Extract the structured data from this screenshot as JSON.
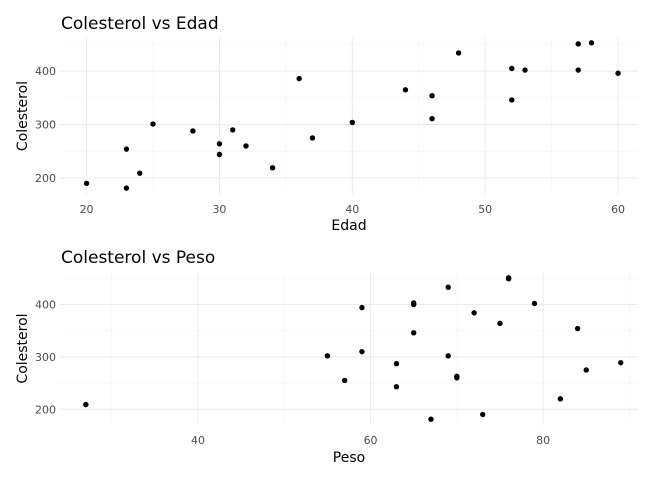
{
  "chart_data": [
    {
      "type": "scatter",
      "title": "Colesterol vs Edad",
      "xlabel": "Edad",
      "ylabel": "Colesterol",
      "xlim": [
        18,
        61.5
      ],
      "ylim": [
        170,
        462
      ],
      "x_ticks": [
        20,
        30,
        40,
        50,
        60
      ],
      "y_ticks": [
        200,
        300,
        400
      ],
      "grid": true,
      "points": [
        {
          "x": 20,
          "y": 190
        },
        {
          "x": 23,
          "y": 181
        },
        {
          "x": 23,
          "y": 254
        },
        {
          "x": 24,
          "y": 209
        },
        {
          "x": 25,
          "y": 301
        },
        {
          "x": 28,
          "y": 288
        },
        {
          "x": 30,
          "y": 264
        },
        {
          "x": 30,
          "y": 244
        },
        {
          "x": 31,
          "y": 290
        },
        {
          "x": 32,
          "y": 260
        },
        {
          "x": 34,
          "y": 219
        },
        {
          "x": 36,
          "y": 386
        },
        {
          "x": 37,
          "y": 275
        },
        {
          "x": 40,
          "y": 304
        },
        {
          "x": 44,
          "y": 365
        },
        {
          "x": 46,
          "y": 354
        },
        {
          "x": 46,
          "y": 311
        },
        {
          "x": 48,
          "y": 434
        },
        {
          "x": 52,
          "y": 405
        },
        {
          "x": 52,
          "y": 346
        },
        {
          "x": 53,
          "y": 402
        },
        {
          "x": 57,
          "y": 451
        },
        {
          "x": 57,
          "y": 402
        },
        {
          "x": 58,
          "y": 453
        },
        {
          "x": 60,
          "y": 396
        }
      ]
    },
    {
      "type": "scatter",
      "title": "Colesterol vs Peso",
      "xlabel": "Peso",
      "ylabel": "Colesterol",
      "xlim": [
        24,
        91
      ],
      "ylim": [
        170,
        462
      ],
      "x_ticks": [
        40,
        60,
        80
      ],
      "y_ticks": [
        200,
        300,
        400
      ],
      "grid": true,
      "points": [
        {
          "x": 27,
          "y": 209
        },
        {
          "x": 55,
          "y": 302
        },
        {
          "x": 57,
          "y": 255
        },
        {
          "x": 59,
          "y": 394
        },
        {
          "x": 59,
          "y": 310
        },
        {
          "x": 63,
          "y": 287
        },
        {
          "x": 63,
          "y": 243
        },
        {
          "x": 65,
          "y": 403
        },
        {
          "x": 65,
          "y": 400
        },
        {
          "x": 65,
          "y": 346
        },
        {
          "x": 67,
          "y": 181
        },
        {
          "x": 69,
          "y": 433
        },
        {
          "x": 69,
          "y": 302
        },
        {
          "x": 70,
          "y": 263
        },
        {
          "x": 70,
          "y": 260
        },
        {
          "x": 72,
          "y": 384
        },
        {
          "x": 73,
          "y": 190
        },
        {
          "x": 75,
          "y": 364
        },
        {
          "x": 76,
          "y": 451
        },
        {
          "x": 76,
          "y": 449
        },
        {
          "x": 79,
          "y": 402
        },
        {
          "x": 82,
          "y": 220
        },
        {
          "x": 84,
          "y": 354
        },
        {
          "x": 85,
          "y": 275
        },
        {
          "x": 89,
          "y": 289
        }
      ]
    }
  ]
}
